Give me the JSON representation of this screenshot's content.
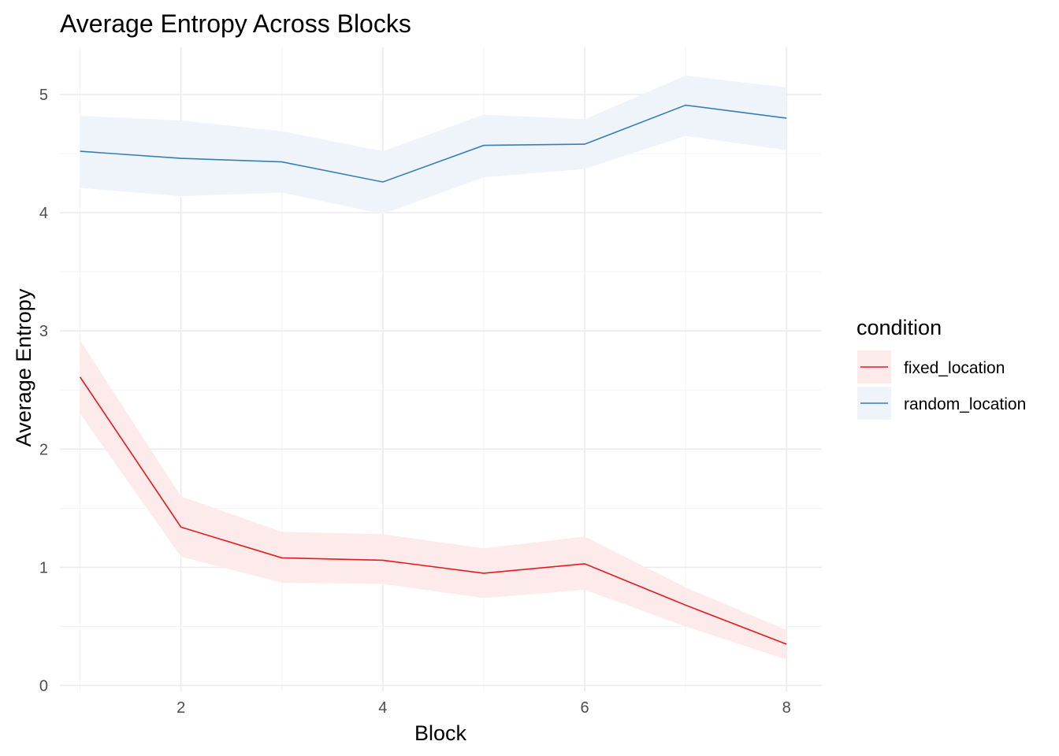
{
  "chart_data": {
    "type": "line",
    "title": "Average Entropy Across Blocks",
    "xlabel": "Block",
    "ylabel": "Average Entropy",
    "xlim": [
      0.8,
      8.35
    ],
    "ylim": [
      -0.05,
      5.4
    ],
    "x_ticks": [
      2,
      4,
      6,
      8
    ],
    "y_ticks": [
      0,
      1,
      2,
      3,
      4,
      5
    ],
    "grid": true,
    "legend": {
      "title": "condition",
      "position": "right"
    },
    "x": [
      1,
      2,
      3,
      4,
      5,
      6,
      7,
      8
    ],
    "series": [
      {
        "name": "fixed_location",
        "color": "#e41a1c",
        "ribbon_color": "#fdeaea",
        "values": [
          2.61,
          1.34,
          1.08,
          1.06,
          0.95,
          1.03,
          0.68,
          0.35
        ],
        "lower": [
          2.3,
          1.09,
          0.87,
          0.86,
          0.74,
          0.81,
          0.5,
          0.22
        ],
        "upper": [
          2.92,
          1.6,
          1.3,
          1.28,
          1.16,
          1.26,
          0.83,
          0.47
        ]
      },
      {
        "name": "random_location",
        "color": "#377eb8",
        "ribbon_color": "#eef4f9",
        "values": [
          4.52,
          4.46,
          4.43,
          4.26,
          4.57,
          4.58,
          4.91,
          4.8
        ],
        "lower": [
          4.21,
          4.14,
          4.17,
          3.99,
          4.3,
          4.37,
          4.65,
          4.53
        ],
        "upper": [
          4.82,
          4.78,
          4.69,
          4.52,
          4.83,
          4.79,
          5.16,
          5.06
        ]
      }
    ]
  }
}
